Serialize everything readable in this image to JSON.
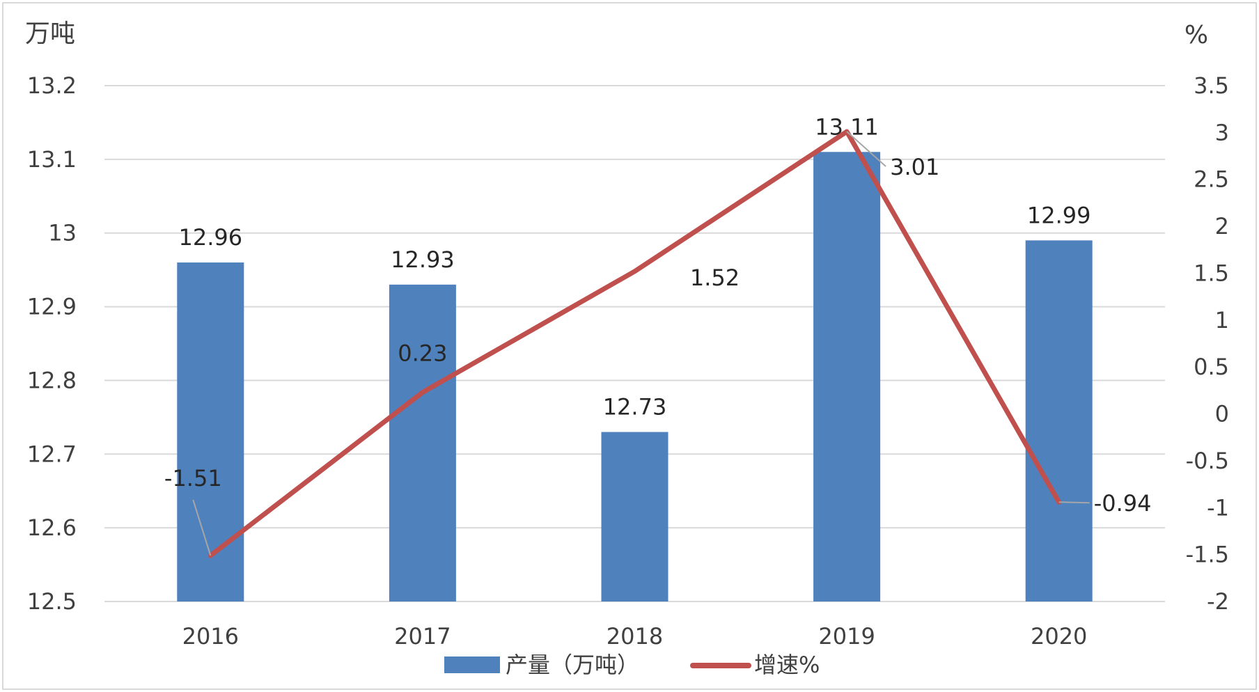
{
  "chart_data": {
    "type": "bar",
    "title": "",
    "categories": [
      "2016",
      "2017",
      "2018",
      "2019",
      "2020"
    ],
    "series": [
      {
        "name": "产量（万吨）",
        "type": "bar",
        "axis": "left",
        "color": "#4F81BD",
        "values": [
          12.96,
          12.93,
          12.73,
          13.11,
          12.99
        ],
        "labels": [
          "12.96",
          "12.93",
          "12.73",
          "13.11",
          "12.99"
        ]
      },
      {
        "name": "增速%",
        "type": "line",
        "axis": "right",
        "color": "#C0504D",
        "values": [
          -1.51,
          0.23,
          1.52,
          3.01,
          -0.94
        ],
        "labels": [
          "-1.51",
          "0.23",
          "1.52",
          "3.01",
          "-0.94"
        ]
      }
    ],
    "y_left": {
      "unit": "万吨",
      "range": [
        12.5,
        13.2
      ],
      "ticks": [
        "12.5",
        "12.6",
        "12.7",
        "12.8",
        "12.9",
        "13",
        "13.1",
        "13.2"
      ]
    },
    "y_right": {
      "unit": "%",
      "range": [
        -2,
        3.5
      ],
      "ticks": [
        "-2",
        "-1.5",
        "-1",
        "-0.5",
        "0",
        "0.5",
        "1",
        "1.5",
        "2",
        "2.5",
        "3",
        "3.5"
      ]
    },
    "grid": true,
    "legend": "bottom"
  }
}
